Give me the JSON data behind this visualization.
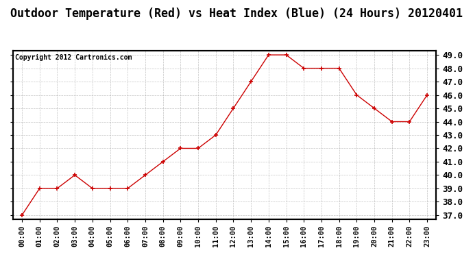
{
  "title": "Outdoor Temperature (Red) vs Heat Index (Blue) (24 Hours) 20120401",
  "copyright": "Copyright 2012 Cartronics.com",
  "x_labels": [
    "00:00",
    "01:00",
    "02:00",
    "03:00",
    "04:00",
    "05:00",
    "06:00",
    "07:00",
    "08:00",
    "09:00",
    "10:00",
    "11:00",
    "12:00",
    "13:00",
    "14:00",
    "15:00",
    "16:00",
    "17:00",
    "18:00",
    "19:00",
    "20:00",
    "21:00",
    "22:00",
    "23:00"
  ],
  "temp_values": [
    37.0,
    39.0,
    39.0,
    40.0,
    39.0,
    39.0,
    39.0,
    40.0,
    41.0,
    42.0,
    42.0,
    43.0,
    45.0,
    47.0,
    49.0,
    49.0,
    48.0,
    48.0,
    48.0,
    46.0,
    45.0,
    44.0,
    44.0,
    46.0
  ],
  "ylim_min": 37.0,
  "ylim_max": 49.0,
  "ytick_step": 1.0,
  "line_color": "#cc0000",
  "marker": "+",
  "plot_bg_color": "#ffffff",
  "grid_color": "#aaaaaa",
  "title_fontsize": 12,
  "copyright_fontsize": 7,
  "tick_fontsize": 7.5,
  "ylabel_right_fontsize": 9,
  "figure_bg": "#ffffff",
  "spine_color": "#000000"
}
